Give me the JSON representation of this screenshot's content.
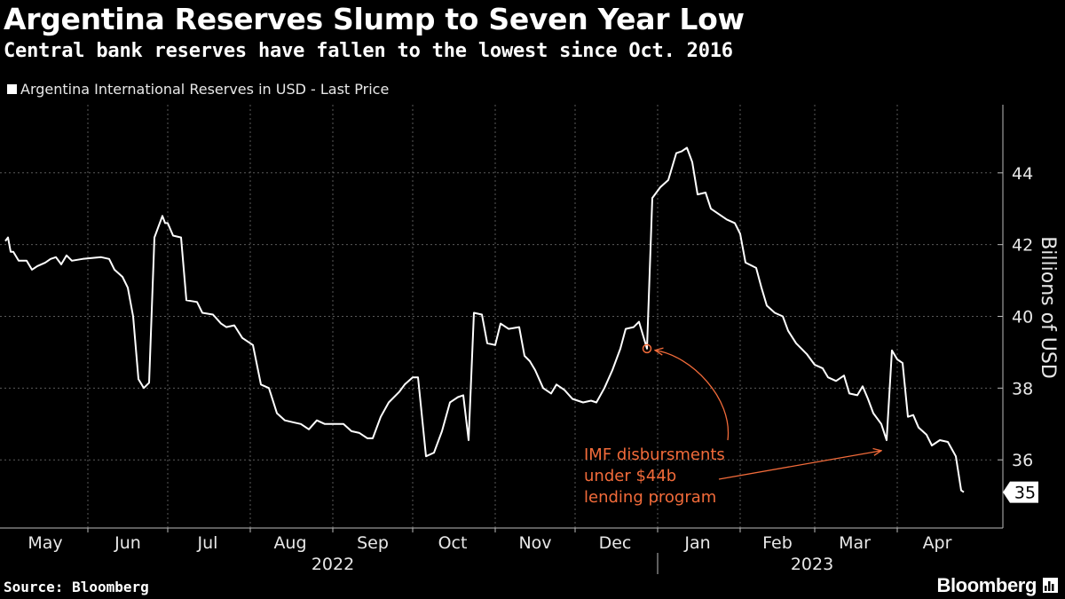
{
  "header": {
    "title": "Argentina Reserves Slump to Seven Year Low",
    "subtitle": "Central bank reserves have fallen to the lowest since Oct. 2016"
  },
  "legend": {
    "label": "Argentina International Reserves in USD - Last Price"
  },
  "footer": {
    "source": "Source: Bloomberg",
    "brand": "Bloomberg",
    "brand_icon": "bloomberg-terminal-icon"
  },
  "colors": {
    "background": "#000000",
    "line": "#ffffff",
    "grid": "#5a5a5a",
    "annotation": "#f26b3a"
  },
  "chart_data": {
    "type": "line",
    "title": "Argentina Reserves Slump to Seven Year Low",
    "subtitle": "Central bank reserves have fallen to the lowest since Oct. 2016",
    "xlabel": "",
    "ylabel": "Billions of USD",
    "ylim": [
      34.1,
      45.9
    ],
    "xlim": [
      "2022-05-01",
      "2023-04-30"
    ],
    "y_ticks": [
      36,
      38,
      40,
      42,
      44
    ],
    "y_axis_position": "right",
    "grid": true,
    "legend_position": "top-left",
    "last_value_label": "35",
    "x_ticks": [
      {
        "label": "May",
        "date": "2022-05-16"
      },
      {
        "label": "Jun",
        "date": "2022-06-16"
      },
      {
        "label": "Jul",
        "date": "2022-07-16"
      },
      {
        "label": "Aug",
        "date": "2022-08-16"
      },
      {
        "label": "Sep",
        "date": "2022-09-16"
      },
      {
        "label": "Oct",
        "date": "2022-10-16"
      },
      {
        "label": "Nov",
        "date": "2022-11-16"
      },
      {
        "label": "Dec",
        "date": "2022-12-16"
      },
      {
        "label": "Jan",
        "date": "2023-01-16"
      },
      {
        "label": "Feb",
        "date": "2023-02-15"
      },
      {
        "label": "Mar",
        "date": "2023-03-16"
      },
      {
        "label": "Apr",
        "date": "2023-04-16"
      }
    ],
    "year_labels": [
      {
        "label": "2022",
        "date": "2022-09-01"
      },
      {
        "label": "2023",
        "date": "2023-02-28"
      }
    ],
    "series": [
      {
        "name": "Argentina International Reserves in USD - Last Price",
        "points": [
          [
            "2022-05-01",
            42.1
          ],
          [
            "2022-05-02",
            42.2
          ],
          [
            "2022-05-03",
            41.8
          ],
          [
            "2022-05-04",
            41.8
          ],
          [
            "2022-05-06",
            41.55
          ],
          [
            "2022-05-09",
            41.55
          ],
          [
            "2022-05-11",
            41.3
          ],
          [
            "2022-05-13",
            41.4
          ],
          [
            "2022-05-16",
            41.5
          ],
          [
            "2022-05-18",
            41.6
          ],
          [
            "2022-05-20",
            41.65
          ],
          [
            "2022-05-22",
            41.45
          ],
          [
            "2022-05-24",
            41.7
          ],
          [
            "2022-05-26",
            41.55
          ],
          [
            "2022-05-30",
            41.6
          ],
          [
            "2022-06-06",
            41.65
          ],
          [
            "2022-06-09",
            41.6
          ],
          [
            "2022-06-11",
            41.3
          ],
          [
            "2022-06-14",
            41.1
          ],
          [
            "2022-06-16",
            40.8
          ],
          [
            "2022-06-18",
            40.0
          ],
          [
            "2022-06-20",
            38.25
          ],
          [
            "2022-06-22",
            38.0
          ],
          [
            "2022-06-24",
            38.15
          ],
          [
            "2022-06-26",
            42.2
          ],
          [
            "2022-06-29",
            42.8
          ],
          [
            "2022-06-30",
            42.6
          ],
          [
            "2022-07-01",
            42.6
          ],
          [
            "2022-07-03",
            42.25
          ],
          [
            "2022-07-06",
            42.2
          ],
          [
            "2022-07-08",
            40.45
          ],
          [
            "2022-07-12",
            40.4
          ],
          [
            "2022-07-14",
            40.1
          ],
          [
            "2022-07-18",
            40.05
          ],
          [
            "2022-07-21",
            39.8
          ],
          [
            "2022-07-23",
            39.7
          ],
          [
            "2022-07-26",
            39.75
          ],
          [
            "2022-07-29",
            39.4
          ],
          [
            "2022-08-02",
            39.2
          ],
          [
            "2022-08-05",
            38.1
          ],
          [
            "2022-08-08",
            38.0
          ],
          [
            "2022-08-11",
            37.3
          ],
          [
            "2022-08-14",
            37.1
          ],
          [
            "2022-08-17",
            37.05
          ],
          [
            "2022-08-20",
            37.0
          ],
          [
            "2022-08-23",
            36.85
          ],
          [
            "2022-08-26",
            37.1
          ],
          [
            "2022-08-29",
            37.0
          ],
          [
            "2022-09-05",
            37.0
          ],
          [
            "2022-09-08",
            36.8
          ],
          [
            "2022-09-11",
            36.75
          ],
          [
            "2022-09-14",
            36.6
          ],
          [
            "2022-09-16",
            36.6
          ],
          [
            "2022-09-19",
            37.2
          ],
          [
            "2022-09-22",
            37.6
          ],
          [
            "2022-09-26",
            37.9
          ],
          [
            "2022-09-28",
            38.1
          ],
          [
            "2022-10-01",
            38.3
          ],
          [
            "2022-10-03",
            38.3
          ],
          [
            "2022-10-06",
            36.1
          ],
          [
            "2022-10-09",
            36.2
          ],
          [
            "2022-10-12",
            36.8
          ],
          [
            "2022-10-15",
            37.6
          ],
          [
            "2022-10-18",
            37.75
          ],
          [
            "2022-10-20",
            37.8
          ],
          [
            "2022-10-22",
            36.55
          ],
          [
            "2022-10-24",
            40.1
          ],
          [
            "2022-10-27",
            40.05
          ],
          [
            "2022-10-29",
            39.25
          ],
          [
            "2022-11-01",
            39.2
          ],
          [
            "2022-11-03",
            39.8
          ],
          [
            "2022-11-06",
            39.65
          ],
          [
            "2022-11-10",
            39.7
          ],
          [
            "2022-11-12",
            38.9
          ],
          [
            "2022-11-14",
            38.75
          ],
          [
            "2022-11-16",
            38.5
          ],
          [
            "2022-11-19",
            38.0
          ],
          [
            "2022-11-22",
            37.85
          ],
          [
            "2022-11-24",
            38.1
          ],
          [
            "2022-11-27",
            37.95
          ],
          [
            "2022-11-30",
            37.7
          ],
          [
            "2022-12-04",
            37.6
          ],
          [
            "2022-12-07",
            37.65
          ],
          [
            "2022-12-09",
            37.6
          ],
          [
            "2022-12-12",
            38.0
          ],
          [
            "2022-12-15",
            38.5
          ],
          [
            "2022-12-18",
            39.1
          ],
          [
            "2022-12-20",
            39.65
          ],
          [
            "2022-12-23",
            39.7
          ],
          [
            "2022-12-25",
            39.85
          ],
          [
            "2022-12-28",
            39.1
          ],
          [
            "2022-12-30",
            43.3
          ],
          [
            "2023-01-02",
            43.6
          ],
          [
            "2023-01-05",
            43.8
          ],
          [
            "2023-01-08",
            44.55
          ],
          [
            "2023-01-10",
            44.6
          ],
          [
            "2023-01-12",
            44.7
          ],
          [
            "2023-01-14",
            44.3
          ],
          [
            "2023-01-16",
            43.4
          ],
          [
            "2023-01-19",
            43.45
          ],
          [
            "2023-01-21",
            43.0
          ],
          [
            "2023-01-24",
            42.85
          ],
          [
            "2023-01-27",
            42.7
          ],
          [
            "2023-01-30",
            42.6
          ],
          [
            "2023-02-01",
            42.3
          ],
          [
            "2023-02-03",
            41.5
          ],
          [
            "2023-02-07",
            41.35
          ],
          [
            "2023-02-09",
            40.8
          ],
          [
            "2023-02-11",
            40.3
          ],
          [
            "2023-02-14",
            40.1
          ],
          [
            "2023-02-17",
            40.0
          ],
          [
            "2023-02-19",
            39.6
          ],
          [
            "2023-02-22",
            39.25
          ],
          [
            "2023-02-26",
            38.95
          ],
          [
            "2023-03-01",
            38.65
          ],
          [
            "2023-03-04",
            38.55
          ],
          [
            "2023-03-06",
            38.3
          ],
          [
            "2023-03-09",
            38.2
          ],
          [
            "2023-03-12",
            38.35
          ],
          [
            "2023-03-14",
            37.85
          ],
          [
            "2023-03-17",
            37.8
          ],
          [
            "2023-03-19",
            38.05
          ],
          [
            "2023-03-21",
            37.7
          ],
          [
            "2023-03-23",
            37.3
          ],
          [
            "2023-03-26",
            37.0
          ],
          [
            "2023-03-28",
            36.55
          ],
          [
            "2023-03-30",
            39.05
          ],
          [
            "2023-04-01",
            38.8
          ],
          [
            "2023-04-03",
            38.7
          ],
          [
            "2023-04-05",
            37.2
          ],
          [
            "2023-04-07",
            37.25
          ],
          [
            "2023-04-09",
            36.9
          ],
          [
            "2023-04-12",
            36.7
          ],
          [
            "2023-04-14",
            36.4
          ],
          [
            "2023-04-17",
            36.55
          ],
          [
            "2023-04-20",
            36.5
          ],
          [
            "2023-04-23",
            36.1
          ],
          [
            "2023-04-25",
            35.15
          ],
          [
            "2023-04-26",
            35.1
          ]
        ]
      }
    ],
    "annotations": [
      {
        "text_lines": [
          "IMF disbursments",
          "under $44b",
          "lending program"
        ],
        "targets": [
          {
            "date": "2022-12-28",
            "value": 39.1,
            "marker": "circle"
          },
          {
            "date": "2023-03-27",
            "value": 36.4,
            "marker": "arrow"
          }
        ]
      }
    ]
  }
}
